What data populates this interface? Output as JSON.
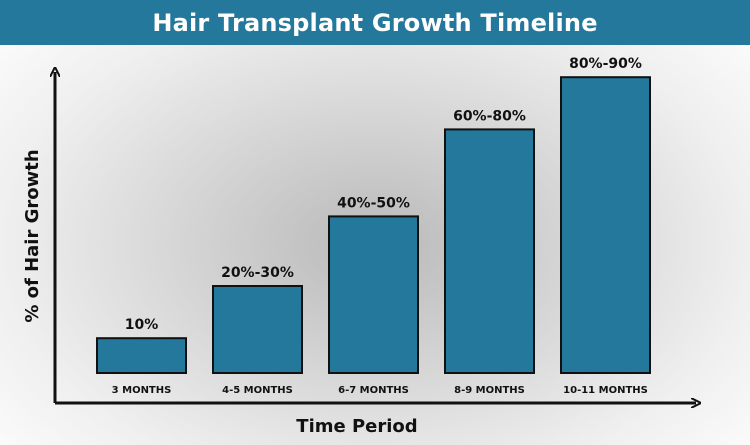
{
  "colors": {
    "header_bg": "#23789c",
    "bar_fill": "#23789c",
    "bar_stroke": "#111111",
    "axis": "#111111"
  },
  "chart_data": {
    "type": "bar",
    "title": "Hair Transplant Growth Timeline",
    "xlabel": "Time Period",
    "ylabel": "% of Hair Growth",
    "categories": [
      "3 MONTHS",
      "4-5 MONTHS",
      "6-7 MONTHS",
      "8-9 MONTHS",
      "10-11 MONTHS"
    ],
    "data_labels": [
      "10%",
      "20%-30%",
      "40%-50%",
      "60%-80%",
      "80%-90%"
    ],
    "values": [
      10,
      25,
      45,
      70,
      85
    ],
    "ylim": [
      0,
      100
    ],
    "grid": false,
    "legend": "none"
  }
}
